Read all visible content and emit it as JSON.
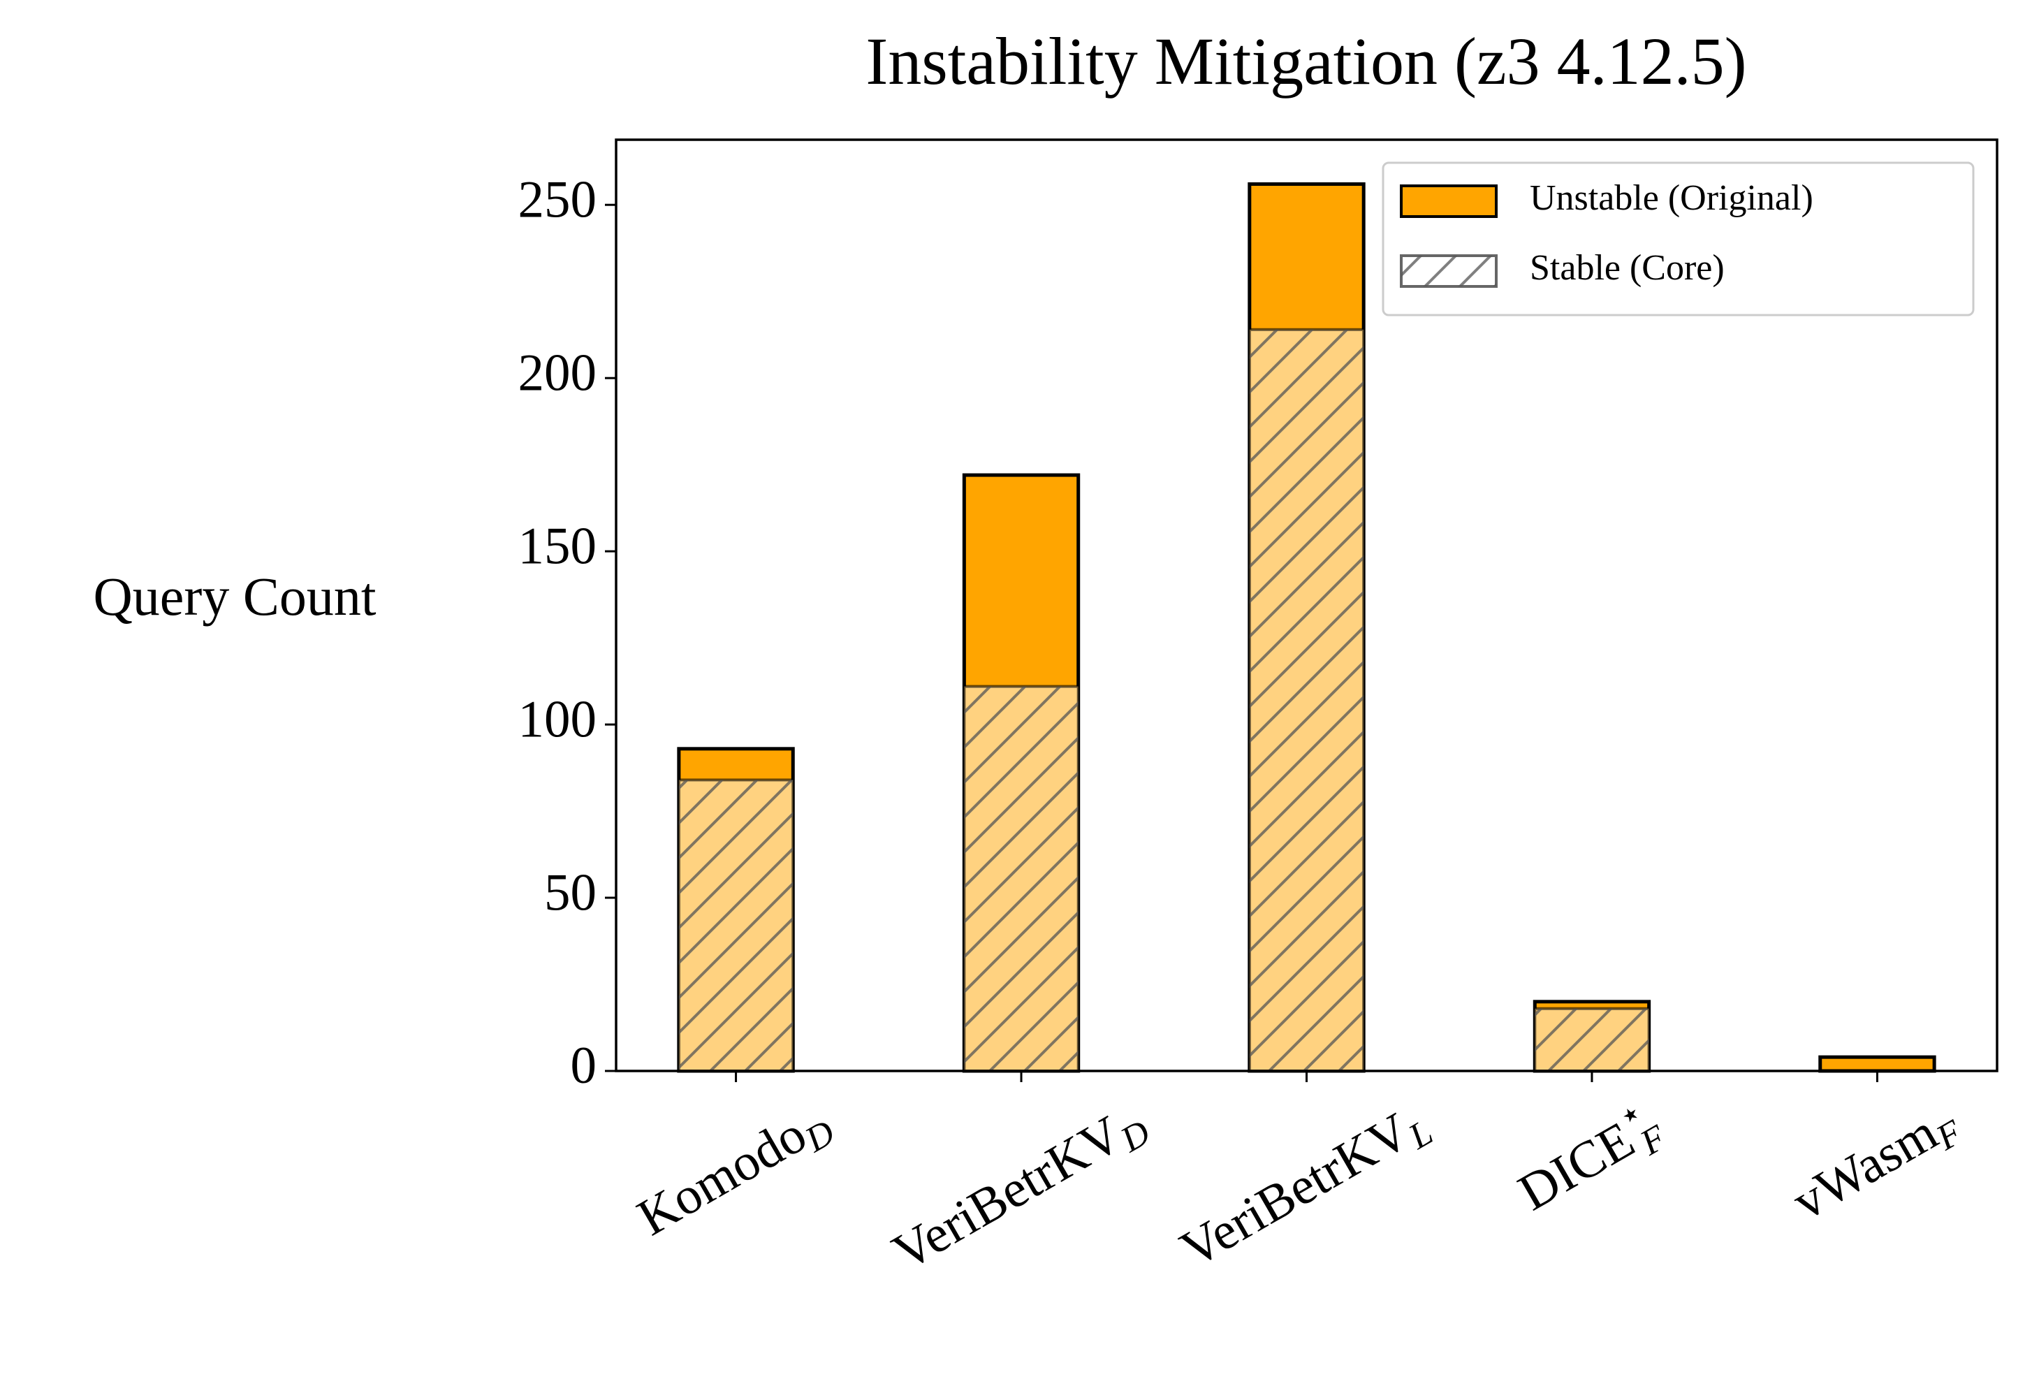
{
  "chart_data": {
    "type": "bar",
    "title": "Instability Mitigation (z3 4.12.5)",
    "y_label": "Query Count",
    "categories": [
      "Komodo",
      "VeriBetrKV",
      "VeriBetrKV",
      "DICE",
      "vWasm"
    ],
    "category_subscripts": [
      "D",
      "D",
      "L",
      "F",
      "F"
    ],
    "category_superscripts": [
      null,
      null,
      null,
      "⋆",
      null
    ],
    "series": [
      {
        "name": "Unstable (Original)",
        "color": "#ffa500",
        "values": [
          93,
          172,
          256,
          20,
          4
        ]
      },
      {
        "name": "Stable (Core)",
        "color": "#ffd280",
        "hatch": true,
        "values": [
          84,
          111,
          214,
          18,
          0
        ]
      }
    ],
    "ylim": [
      0,
      268.8
    ],
    "yticks": [
      0,
      50,
      100,
      150,
      200,
      250
    ],
    "legend": "upper right",
    "grid": false
  }
}
